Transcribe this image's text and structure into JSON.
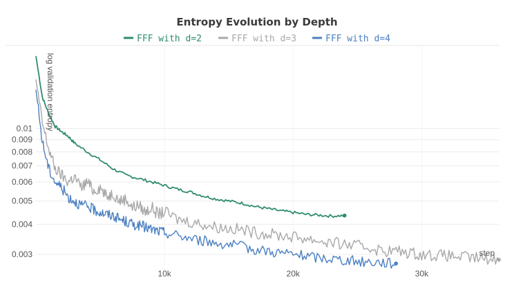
{
  "chart_data": {
    "type": "line",
    "title": "Entropy Evolution by Depth",
    "xlabel": "step",
    "ylabel": "log validation entropy",
    "y_scale": "log",
    "xlim": [
      0,
      36000
    ],
    "ylim": [
      0.0027,
      0.022
    ],
    "x_ticks": [
      10000,
      20000,
      30000
    ],
    "x_tick_labels": [
      "10k",
      "20k",
      "30k"
    ],
    "y_ticks": [
      0.003,
      0.004,
      0.005,
      0.006,
      0.007,
      0.008,
      0.009,
      0.01
    ],
    "y_tick_labels": [
      "0.003",
      "0.004",
      "0.005",
      "0.006",
      "0.007",
      "0.008",
      "0.009",
      "0.01"
    ],
    "legend_position": "top",
    "series": [
      {
        "name": "FFF with d=2",
        "color": "#2e8b6e",
        "x": [
          0,
          500,
          1000,
          1500,
          2000,
          2500,
          3000,
          4000,
          5000,
          6000,
          7000,
          8000,
          9000,
          10000,
          11000,
          12000,
          13000,
          14000,
          15000,
          16000,
          17000,
          18000,
          19000,
          20000,
          21000,
          22000,
          23000,
          24000
        ],
        "y": [
          0.02,
          0.0135,
          0.0115,
          0.0102,
          0.0097,
          0.0093,
          0.0087,
          0.008,
          0.0074,
          0.0068,
          0.0064,
          0.0062,
          0.006,
          0.0058,
          0.0056,
          0.00545,
          0.00525,
          0.0051,
          0.005,
          0.0049,
          0.00475,
          0.00465,
          0.00455,
          0.00448,
          0.0044,
          0.00437,
          0.00433,
          0.00435
        ]
      },
      {
        "name": "FFF with d=3",
        "color": "#a8a8a8",
        "x": [
          0,
          500,
          1000,
          1500,
          2000,
          2500,
          3000,
          3500,
          4000,
          4500,
          5000,
          5500,
          6000,
          6500,
          7000,
          7500,
          8000,
          8500,
          9000,
          9500,
          10000,
          11000,
          12000,
          13000,
          14000,
          15000,
          16000,
          17000,
          18000,
          19000,
          20000,
          21000,
          22000,
          23000,
          24000,
          25000,
          26000,
          27000,
          28000,
          29000,
          30000,
          31000,
          32000,
          33000,
          34000,
          35000,
          36000
        ],
        "y": [
          0.016,
          0.0105,
          0.0082,
          0.0068,
          0.0064,
          0.006,
          0.0063,
          0.0057,
          0.006,
          0.0055,
          0.0057,
          0.0052,
          0.0054,
          0.005,
          0.0051,
          0.0047,
          0.0048,
          0.0045,
          0.0047,
          0.0044,
          0.0045,
          0.0042,
          0.0041,
          0.004,
          0.0039,
          0.00385,
          0.0038,
          0.0037,
          0.00365,
          0.0036,
          0.00355,
          0.0035,
          0.00342,
          0.00335,
          0.0033,
          0.00325,
          0.0032,
          0.0031,
          0.0031,
          0.00305,
          0.003,
          0.00298,
          0.00296,
          0.00293,
          0.0029,
          0.00288,
          0.00285
        ]
      },
      {
        "name": "FFF with d=4",
        "color": "#4a7fc1",
        "x": [
          0,
          500,
          1000,
          1500,
          2000,
          2500,
          3000,
          3500,
          4000,
          4500,
          5000,
          5500,
          6000,
          6500,
          7000,
          7500,
          8000,
          8500,
          9000,
          9500,
          10000,
          11000,
          12000,
          13000,
          14000,
          15000,
          16000,
          17000,
          18000,
          19000,
          20000,
          21000,
          22000,
          23000,
          24000,
          25000,
          26000,
          27000,
          28000
        ],
        "y": [
          0.0145,
          0.0088,
          0.0068,
          0.006,
          0.0057,
          0.0052,
          0.005,
          0.0048,
          0.00475,
          0.0046,
          0.0045,
          0.0044,
          0.00435,
          0.0042,
          0.0041,
          0.004,
          0.00395,
          0.0039,
          0.0038,
          0.00375,
          0.0037,
          0.0036,
          0.0035,
          0.00342,
          0.00335,
          0.0033,
          0.00322,
          0.00315,
          0.0031,
          0.00305,
          0.003,
          0.00295,
          0.0029,
          0.00288,
          0.00284,
          0.0028,
          0.00279,
          0.00278,
          0.00275
        ]
      }
    ]
  }
}
